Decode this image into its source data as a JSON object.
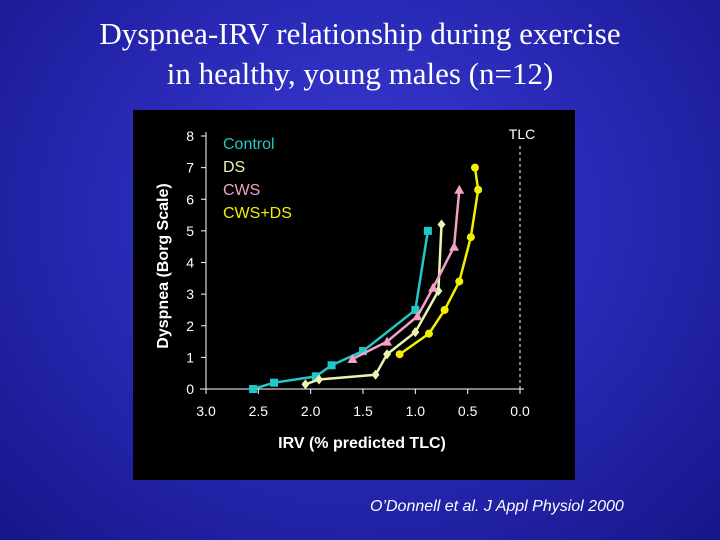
{
  "slide": {
    "title_line1": "Dyspnea-IRV relationship during exercise",
    "title_line2": "in healthy, young males (n=12)",
    "citation": "O’Donnell et al.  J Appl Physiol 2000"
  },
  "chart_data": {
    "type": "line",
    "xlabel": "IRV (% predicted TLC)",
    "ylabel": "Dyspnea (Borg Scale)",
    "xlim": [
      3.0,
      0.0
    ],
    "ylim": [
      0,
      8
    ],
    "x_reversed": true,
    "xticks": [
      "3.0",
      "2.5",
      "2.0",
      "1.5",
      "1.0",
      "0.5",
      "0.0"
    ],
    "yticks": [
      "0",
      "1",
      "2",
      "3",
      "4",
      "5",
      "6",
      "7",
      "8"
    ],
    "grid": false,
    "legend_position": "top-left",
    "reference_line": {
      "label": "TLC",
      "x": 0.0,
      "style": "dashed"
    },
    "series": [
      {
        "name": "Control",
        "color": "#22c8c8",
        "marker": "square",
        "points": [
          [
            2.55,
            0.0
          ],
          [
            2.35,
            0.2
          ],
          [
            1.95,
            0.4
          ],
          [
            1.8,
            0.75
          ],
          [
            1.5,
            1.2
          ],
          [
            1.0,
            2.5
          ],
          [
            0.88,
            5.0
          ]
        ]
      },
      {
        "name": "DS",
        "color": "#e8f4b0",
        "marker": "diamond",
        "points": [
          [
            2.05,
            0.15
          ],
          [
            1.92,
            0.3
          ],
          [
            1.38,
            0.45
          ],
          [
            1.27,
            1.1
          ],
          [
            1.0,
            1.8
          ],
          [
            0.78,
            3.1
          ],
          [
            0.75,
            5.2
          ]
        ]
      },
      {
        "name": "CWS",
        "color": "#f3a0c8",
        "marker": "triangle",
        "points": [
          [
            1.6,
            0.95
          ],
          [
            1.27,
            1.5
          ],
          [
            0.98,
            2.3
          ],
          [
            0.83,
            3.2
          ],
          [
            0.63,
            4.5
          ],
          [
            0.58,
            6.3
          ]
        ]
      },
      {
        "name": "CWS+DS",
        "color": "#f2f000",
        "marker": "circle",
        "points": [
          [
            1.15,
            1.1
          ],
          [
            0.87,
            1.75
          ],
          [
            0.72,
            2.5
          ],
          [
            0.58,
            3.4
          ],
          [
            0.47,
            4.8
          ],
          [
            0.4,
            6.3
          ],
          [
            0.43,
            7.0
          ]
        ]
      }
    ]
  }
}
